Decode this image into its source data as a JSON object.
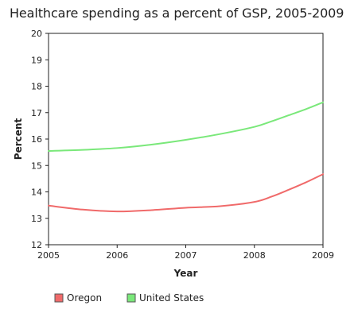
{
  "chart_data": {
    "type": "line",
    "title": "Healthcare spending as a percent of GSP, 2005-2009",
    "xlabel": "Year",
    "ylabel": "Percent",
    "x": [
      2005,
      2005.5,
      2006,
      2006.5,
      2007,
      2007.5,
      2008,
      2008.25,
      2008.5,
      2008.75,
      2009
    ],
    "xticks": [
      "2005",
      "2006",
      "2007",
      "2008",
      "2009"
    ],
    "xlim": [
      2005,
      2009
    ],
    "ylim": [
      12,
      20
    ],
    "yticks": [
      "12",
      "13",
      "14",
      "15",
      "16",
      "17",
      "18",
      "19",
      "20"
    ],
    "grid": false,
    "legend_position": "bottom-left",
    "series": [
      {
        "name": "Oregon",
        "color": "#f06a6a",
        "values": [
          13.48,
          13.33,
          13.26,
          13.31,
          13.4,
          13.46,
          13.62,
          13.82,
          14.08,
          14.36,
          14.67
        ]
      },
      {
        "name": "United States",
        "color": "#7ae87a",
        "values": [
          15.55,
          15.59,
          15.66,
          15.79,
          15.97,
          16.19,
          16.46,
          16.67,
          16.9,
          17.13,
          17.39
        ]
      }
    ]
  }
}
